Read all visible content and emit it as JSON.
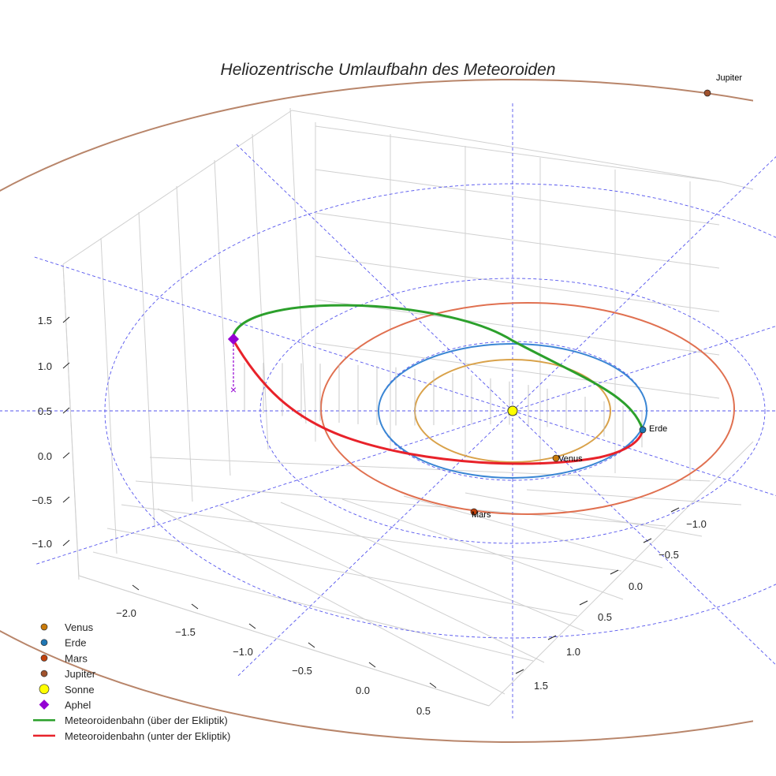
{
  "chart_data": {
    "type": "line",
    "title": "Heliozentrische Umlaufbahn des Meteoroiden",
    "projection": "3d",
    "x_ticks": [
      "−2.0",
      "−1.5",
      "−1.0",
      "−0.5",
      "0.0",
      "0.5"
    ],
    "y_ticks": [
      "−1.0",
      "−0.5",
      "0.0",
      "0.5",
      "1.0",
      "1.5"
    ],
    "z_ticks": [
      "1.5",
      "1.0",
      "0.5",
      "0.0",
      "−0.5",
      "−1.0"
    ],
    "planets": [
      {
        "name": "Venus",
        "label": "Venus",
        "color": "#c97a0a",
        "orbit_color": "#d9a24a",
        "orbit_radius_au": 0.72
      },
      {
        "name": "Erde",
        "label": "Erde",
        "color": "#1f77b4",
        "orbit_color": "#3a86d4",
        "orbit_radius_au": 1.0
      },
      {
        "name": "Mars",
        "label": "Mars",
        "color": "#c2410c",
        "orbit_color": "#e07050",
        "orbit_radius_au": 1.52
      },
      {
        "name": "Jupiter",
        "label": "Jupiter",
        "color": "#a0522d",
        "orbit_color": "#b8856a",
        "orbit_radius_au": 5.2
      }
    ],
    "legend": {
      "placement": "bottom-left",
      "entries": [
        {
          "label": "Venus",
          "marker": "circle",
          "color": "#c97a0a"
        },
        {
          "label": "Erde",
          "marker": "circle",
          "color": "#1f77b4"
        },
        {
          "label": "Mars",
          "marker": "circle",
          "color": "#c2410c"
        },
        {
          "label": "Jupiter",
          "marker": "circle",
          "color": "#a0522d"
        },
        {
          "label": "Sonne",
          "marker": "circle",
          "color": "#ffff00"
        },
        {
          "label": "Aphel",
          "marker": "diamond",
          "color": "#9400d3"
        },
        {
          "label": "Meteoroidenbahn (über der Ekliptik)",
          "marker": "line",
          "color": "#2ca02c"
        },
        {
          "label": "Meteoroidenbahn (unter der Ekliptik)",
          "marker": "line",
          "color": "#e8222a"
        }
      ]
    },
    "series": [
      {
        "name": "Meteoroidenbahn (über der Ekliptik)",
        "color": "#2ca02c"
      },
      {
        "name": "Meteoroidenbahn (unter der Ekliptik)",
        "color": "#e8222a"
      }
    ],
    "grid": true
  }
}
